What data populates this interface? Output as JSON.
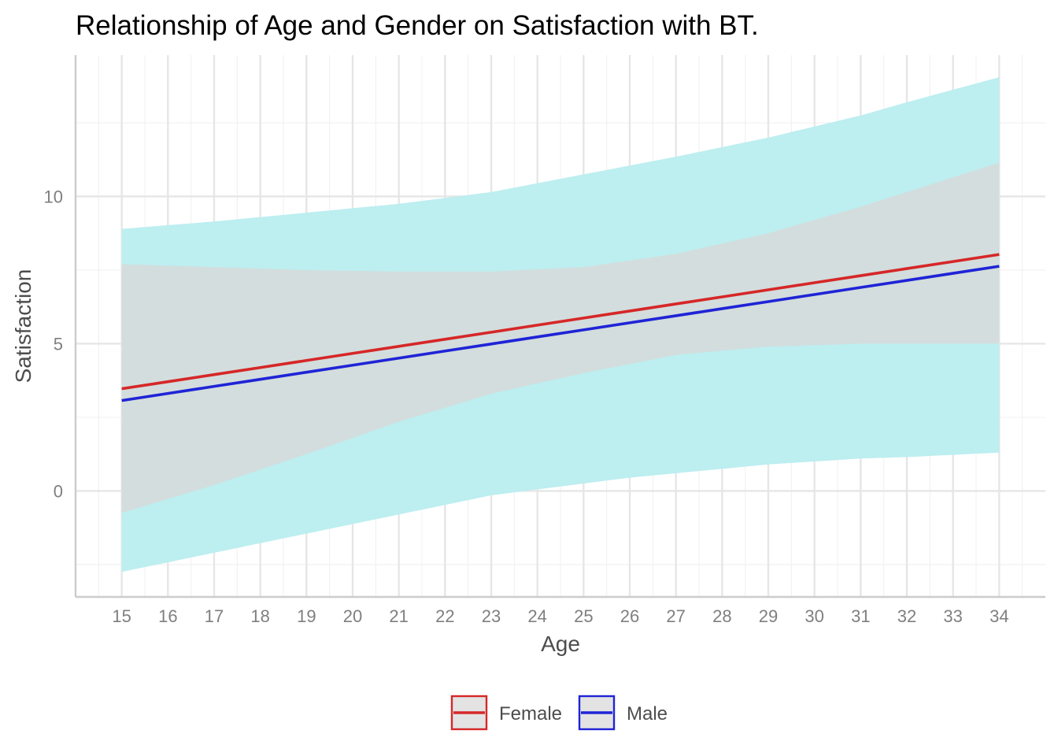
{
  "chart_data": {
    "type": "line",
    "title": "Relationship of Age and Gender on Satisfaction with BT.",
    "xlabel": "Age",
    "ylabel": "Satisfaction",
    "x": [
      15,
      16,
      17,
      18,
      19,
      20,
      21,
      22,
      23,
      24,
      25,
      26,
      27,
      28,
      29,
      30,
      31,
      32,
      33,
      34
    ],
    "xlim": [
      14,
      35
    ],
    "ylim": [
      -3.6,
      14.8
    ],
    "x_ticks": [
      15,
      16,
      17,
      18,
      19,
      20,
      21,
      22,
      23,
      24,
      25,
      26,
      27,
      28,
      29,
      30,
      31,
      32,
      33,
      34
    ],
    "y_ticks": [
      0,
      5,
      10
    ],
    "y_minor_ticks": [
      -2.5,
      2.5,
      7.5,
      12.5
    ],
    "grid": true,
    "legend_position": "bottom",
    "series": [
      {
        "name": "Female",
        "color": "#d62728",
        "values": [
          3.47,
          3.71,
          3.95,
          4.19,
          4.43,
          4.67,
          4.91,
          5.15,
          5.39,
          5.63,
          5.87,
          6.11,
          6.35,
          6.59,
          6.83,
          7.07,
          7.31,
          7.55,
          7.79,
          8.03
        ],
        "band": {
          "x": [
            15,
            17,
            19,
            21,
            23,
            25,
            27,
            29,
            31,
            32,
            34
          ],
          "lower": [
            -0.75,
            0.2,
            1.25,
            2.35,
            3.3,
            4.0,
            4.62,
            4.9,
            5.0,
            5.0,
            5.0
          ],
          "upper": [
            7.7,
            7.6,
            7.5,
            7.45,
            7.45,
            7.6,
            8.05,
            8.75,
            9.65,
            10.15,
            11.15
          ]
        }
      },
      {
        "name": "Male",
        "color": "#1f24d6",
        "values": [
          3.07,
          3.31,
          3.55,
          3.79,
          4.03,
          4.27,
          4.51,
          4.75,
          4.99,
          5.23,
          5.47,
          5.71,
          5.95,
          6.19,
          6.43,
          6.67,
          6.91,
          7.15,
          7.39,
          7.63
        ],
        "band": {
          "x": [
            15,
            17,
            19,
            21,
            23,
            25,
            26,
            27,
            29,
            31,
            32,
            34
          ],
          "lower": [
            -2.75,
            -2.1,
            -1.45,
            -0.8,
            -0.15,
            0.25,
            0.45,
            0.6,
            0.9,
            1.1,
            1.15,
            1.3
          ],
          "upper": [
            8.9,
            9.15,
            9.45,
            9.75,
            10.15,
            10.75,
            11.05,
            11.35,
            12.0,
            12.75,
            13.2,
            14.05
          ]
        }
      }
    ],
    "band_colors": {
      "outer": "#bdeef0",
      "overlap": "#d3dddd"
    }
  }
}
